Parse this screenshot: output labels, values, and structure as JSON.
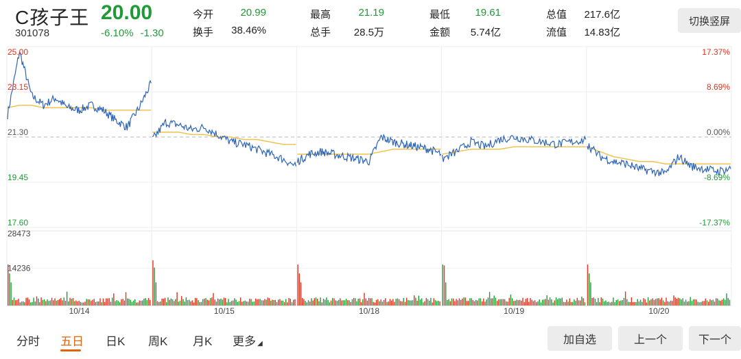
{
  "stock": {
    "name": "C孩子王",
    "code": "301078",
    "price": "20.00",
    "change_pct": "-6.10%",
    "change_amt": "-1.30"
  },
  "stats": {
    "open_label": "今开",
    "open": "20.99",
    "turnover_label": "换手",
    "turnover": "38.46%",
    "high_label": "最高",
    "high": "21.19",
    "volume_label": "总手",
    "volume": "28.5万",
    "low_label": "最低",
    "low": "19.61",
    "amount_label": "金额",
    "amount": "5.74亿",
    "mktcap_label": "总值",
    "mktcap": "217.6亿",
    "float_label": "流值",
    "float": "14.83亿"
  },
  "buttons": {
    "portrait": "切换竖屏",
    "add_watch": "加自选",
    "prev": "上一个",
    "next": "下一个"
  },
  "tabs": [
    {
      "label": "分时"
    },
    {
      "label": "五日"
    },
    {
      "label": "日K"
    },
    {
      "label": "周K"
    },
    {
      "label": "月K"
    },
    {
      "label": "更多"
    }
  ],
  "colors": {
    "up": "#e0301e",
    "down": "#1f9a36",
    "price_line": "#2d63b8",
    "avg_line": "#f0c24f",
    "accent": "#e2620d"
  },
  "chart_data": {
    "type": "line",
    "price_axis": {
      "left_labels": [
        "25.00",
        "23.15",
        "21.30",
        "19.45",
        "17.60"
      ],
      "right_labels": [
        "17.37%",
        "8.69%",
        "0.00%",
        "-8.69%",
        "-17.37%"
      ],
      "ylim": [
        17.6,
        25.0
      ],
      "prev_close": 21.3
    },
    "volume_axis": {
      "labels": [
        "28473",
        "14236"
      ],
      "ylim": [
        0,
        28473
      ]
    },
    "days": [
      "10/14",
      "10/15",
      "10/18",
      "10/19",
      "10/20"
    ],
    "series": [
      {
        "name": "",
        "day_values": [
          [
            22.2,
            24.8,
            23.0,
            22.6,
            22.9,
            22.5,
            22.4,
            22.6,
            22.4,
            22.0,
            21.7,
            22.5,
            23.5
          ],
          [
            21.2,
            21.9,
            21.8,
            21.6,
            21.7,
            21.4,
            21.1,
            21.0,
            20.8,
            20.6,
            20.4,
            20.1
          ],
          [
            20.3,
            20.6,
            20.7,
            20.6,
            20.5,
            20.4,
            20.3,
            21.3,
            21.1,
            21.0,
            20.9,
            20.8,
            20.6
          ],
          [
            20.4,
            20.7,
            21.1,
            20.9,
            21.2,
            21.3,
            21.2,
            21.1,
            21.0,
            21.1,
            21.2
          ],
          [
            21.0,
            20.5,
            20.3,
            20.2,
            20.0,
            19.9,
            19.8,
            20.5,
            20.1,
            20.0,
            19.9,
            20.0
          ]
        ]
      },
      {
        "name": "",
        "day_values": [
          [
            22.5,
            22.6,
            22.6,
            22.5,
            22.5,
            22.5,
            22.5,
            22.5,
            22.4,
            22.4,
            22.4,
            22.4,
            22.4
          ],
          [
            21.5,
            21.5,
            21.5,
            21.4,
            21.4,
            21.3,
            21.3,
            21.2,
            21.2,
            21.1,
            21.0,
            21.0
          ],
          [
            20.6,
            20.6,
            20.6,
            20.6,
            20.6,
            20.6,
            20.6,
            20.7,
            20.8,
            20.8,
            20.8,
            20.8,
            20.8
          ],
          [
            20.6,
            20.7,
            20.8,
            20.8,
            20.8,
            20.9,
            20.9,
            20.9,
            20.9,
            20.9,
            20.9
          ],
          [
            20.9,
            20.7,
            20.5,
            20.4,
            20.3,
            20.3,
            20.2,
            20.2,
            20.2,
            20.2,
            20.2,
            20.2
          ]
        ]
      }
    ],
    "grid": true
  }
}
